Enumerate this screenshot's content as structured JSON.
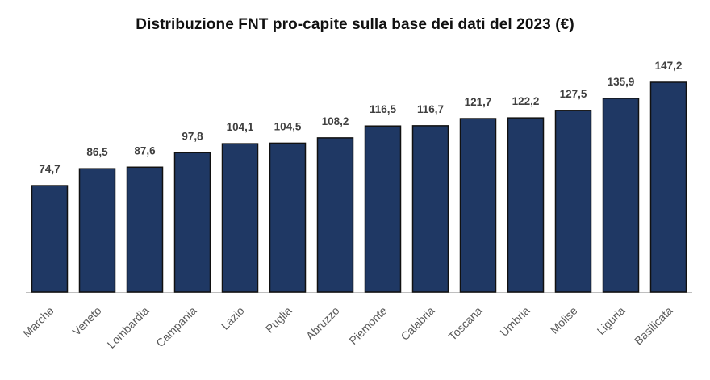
{
  "chart_data": {
    "type": "bar",
    "title": "Distribuzione FNT pro-capite sulla base dei dati del 2023 (€)",
    "xlabel": "",
    "ylabel": "",
    "categories": [
      "Marche",
      "Veneto",
      "Lombardia",
      "Campania",
      "Lazio",
      "Puglia",
      "Abruzzo",
      "Piemonte",
      "Calabria",
      "Toscana",
      "Umbria",
      "Molise",
      "Liguria",
      "Basilicata"
    ],
    "values": [
      74.7,
      86.5,
      87.6,
      97.8,
      104.1,
      104.5,
      108.2,
      116.5,
      116.7,
      121.7,
      122.2,
      127.5,
      135.9,
      147.2
    ],
    "value_labels": [
      "74,7",
      "86,5",
      "87,6",
      "97,8",
      "104,1",
      "104,5",
      "108,2",
      "116,5",
      "116,7",
      "121,7",
      "122,2",
      "127,5",
      "135,9",
      "147,2"
    ],
    "ylim": [
      0,
      147.2
    ],
    "grid": false,
    "legend": "none",
    "bar_color": "#1f3864",
    "bar_edge_color": "#111111",
    "axis_color": "#bfbfbf"
  }
}
